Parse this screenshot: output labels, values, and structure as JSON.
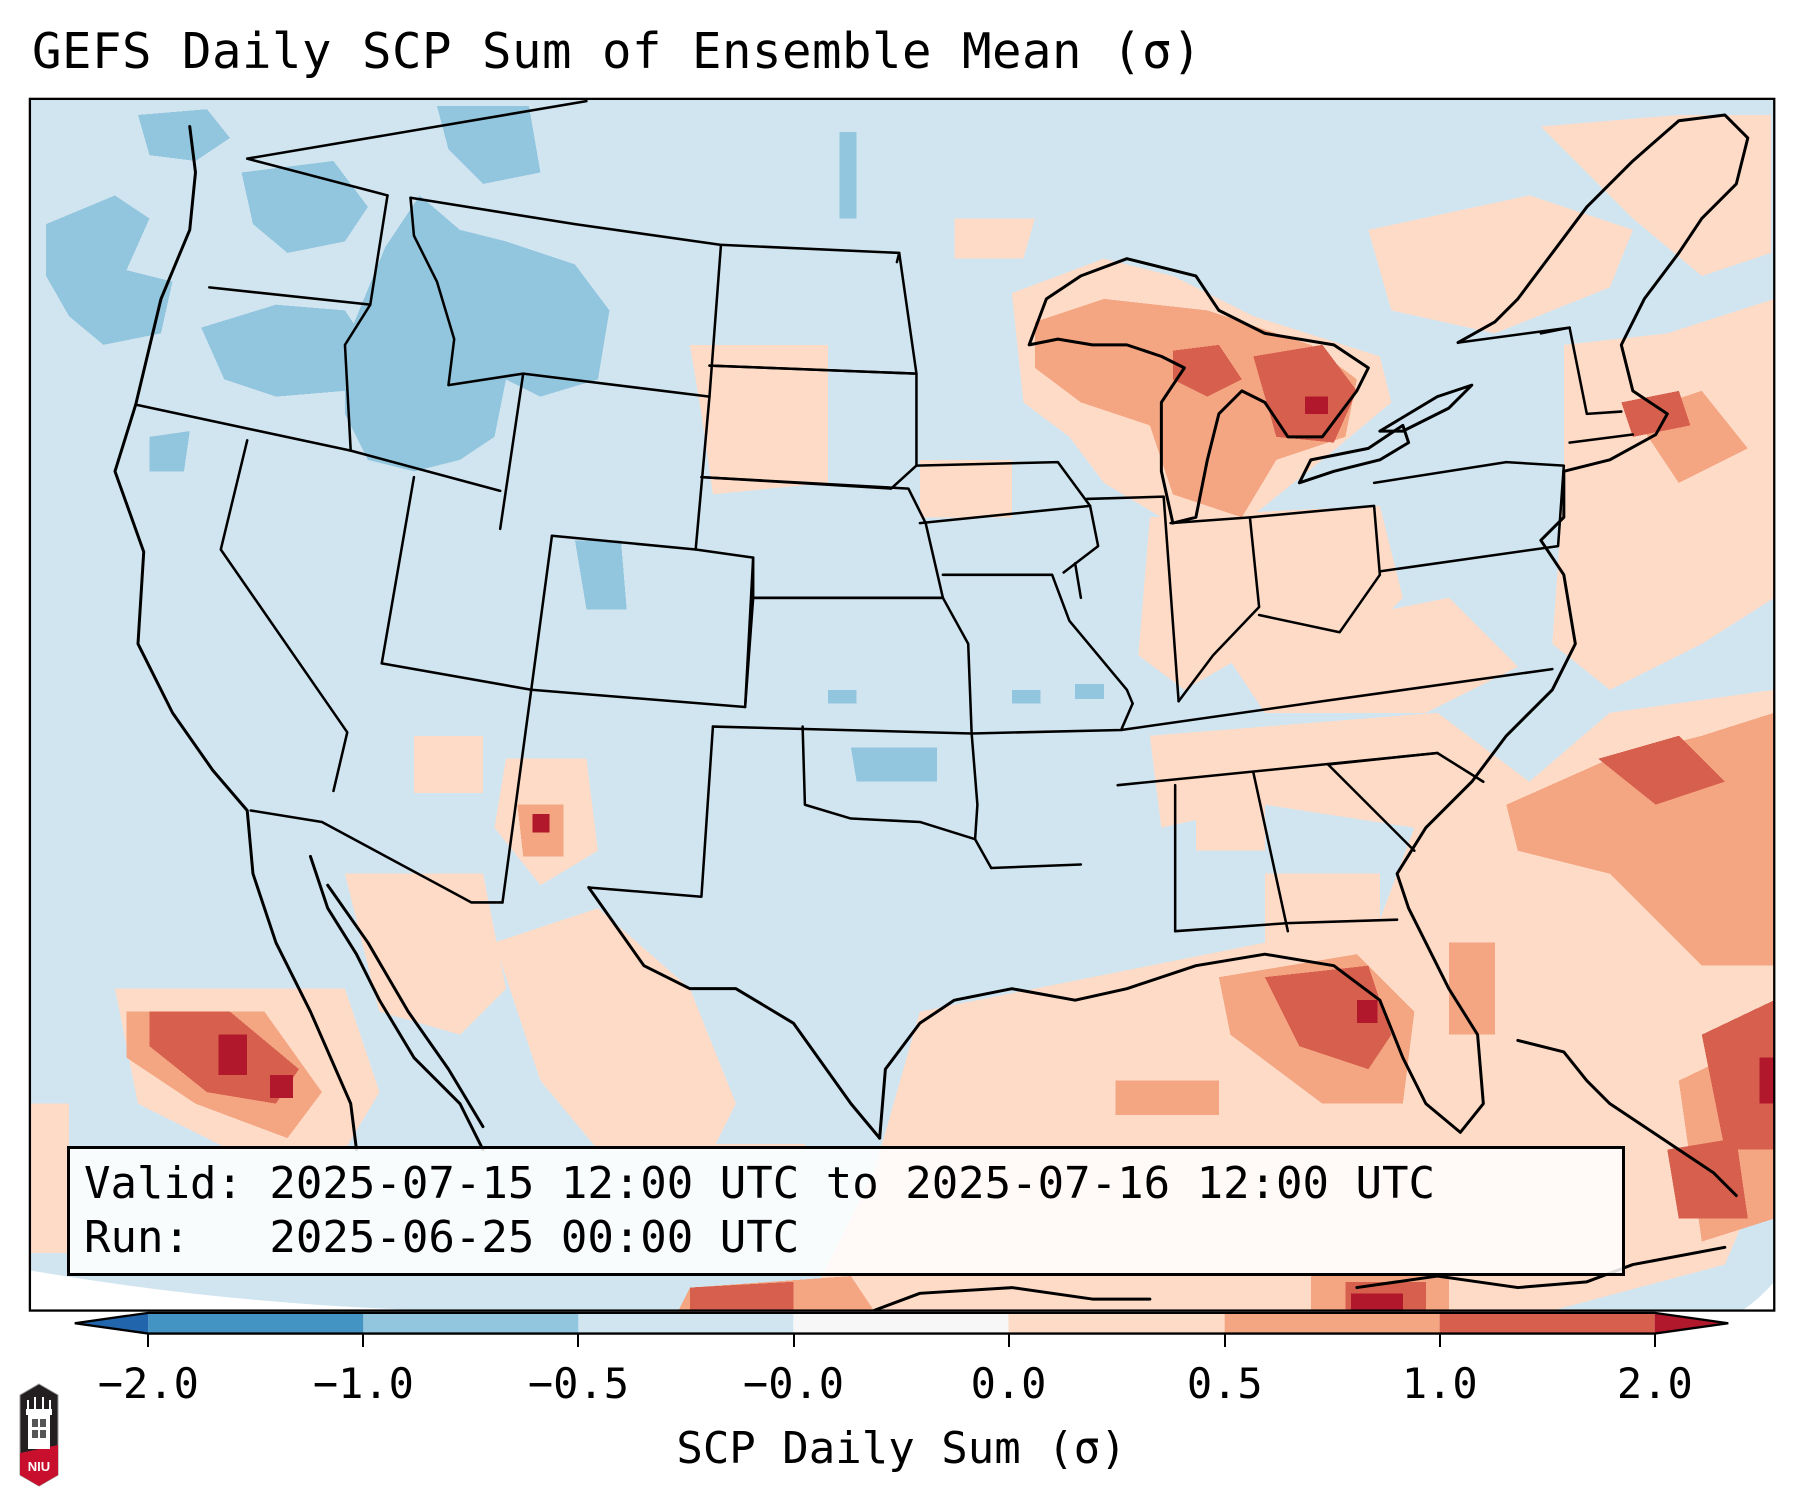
{
  "title": "GEFS Daily SCP Sum of Ensemble Mean (σ)",
  "info": {
    "valid_line": "Valid: 2025-07-15 12:00 UTC to 2025-07-16 12:00 UTC",
    "run_line": "Run:   2025-06-25 00:00 UTC"
  },
  "colorbar": {
    "label": "SCP Daily Sum (σ)",
    "ticks": [
      "-2.0",
      "-1.0",
      "-0.5",
      "-0.0",
      "0.0",
      "0.5",
      "1.0",
      "2.0"
    ],
    "colors": {
      "below_min": "#2166ac",
      "bins": [
        "#4393c3",
        "#92c5de",
        "#d1e5f0",
        "#f7f7f7",
        "#fddbc7",
        "#f4a582",
        "#d6604d"
      ],
      "above_max": "#b2182b"
    },
    "extend": "both"
  },
  "logo": {
    "text": "NIU",
    "icon": "university-tower-logo"
  },
  "map": {
    "projection": "Lambert Conformal",
    "region": "Contiguous United States",
    "base_color": "#d1e5f0",
    "boundary_color": "#000000"
  }
}
